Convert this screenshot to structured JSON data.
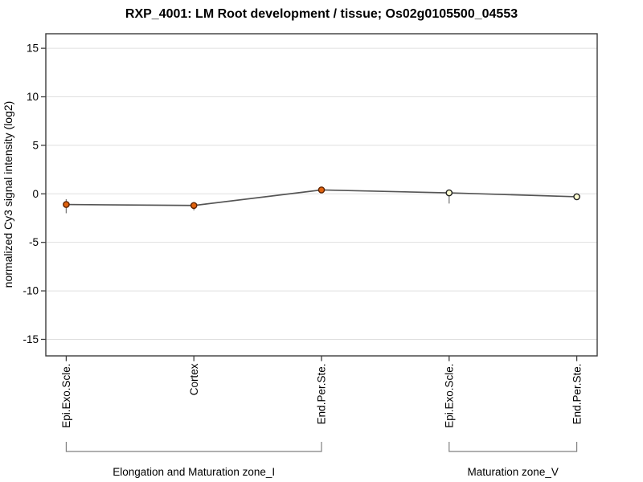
{
  "chart_data": {
    "type": "line",
    "title": "RXP_4001: LM Root development / tissue; Os02g0105500_04553",
    "ylabel": "normalized Cy3 signal intensity (log2)",
    "xlabel": "",
    "ylim": [
      -16.7,
      16.5
    ],
    "yticks": [
      15,
      10,
      5,
      0,
      -5,
      -10,
      -15
    ],
    "grid": true,
    "legend": "none",
    "categories": [
      "Epi.Exo.Scle.",
      "Cortex",
      "End.Per.Ste.",
      "Epi.Exo.Scle.",
      "End.Per.Ste."
    ],
    "series": [
      {
        "name": "normalized Cy3 signal intensity (log2)",
        "values": [
          -1.1,
          -1.2,
          0.4,
          0.1,
          -0.3
        ],
        "error_low": [
          -2.0,
          -1.7,
          0.15,
          -1.0,
          -0.5
        ],
        "error_high": [
          -0.55,
          -0.9,
          0.65,
          0.3,
          -0.15
        ],
        "marker_filled": [
          true,
          true,
          true,
          false,
          false
        ]
      }
    ],
    "groups": [
      {
        "label": "Elongation and Maturation zone_I",
        "from": 0,
        "to": 2
      },
      {
        "label": "Maturation zone_V",
        "from": 3,
        "to": 4
      }
    ],
    "colors": {
      "marker_fill": "#e0620d",
      "marker_stroke": "#5f2300",
      "open_marker_fill": "#ffffd2",
      "open_marker_stroke": "#222222",
      "line": "#555555",
      "error_bar": "#7a7a7a",
      "gridline": "#dfdfdf",
      "axis": "#3c3c3c",
      "bracket": "#808080",
      "background": "#ffffff"
    }
  }
}
